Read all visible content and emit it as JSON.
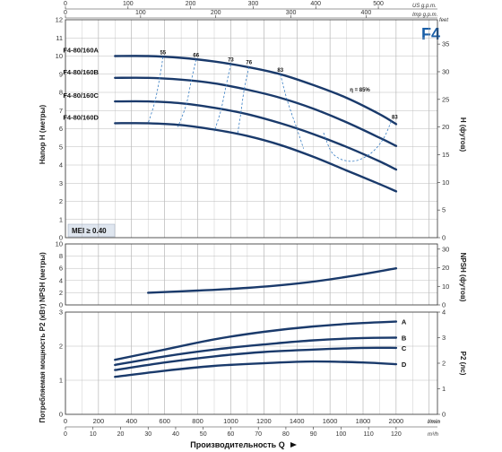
{
  "chart_data": {
    "type": "line",
    "badge": "F4",
    "mei": "MEI ≥ 0.40",
    "top_axes": [
      {
        "unit": "US g.p.m.",
        "ticks": [
          0,
          100,
          200,
          300,
          400,
          500
        ]
      },
      {
        "unit": "Imp g.p.m.",
        "ticks": [
          0,
          100,
          200,
          300,
          400
        ]
      }
    ],
    "bottom_axes": {
      "lmin": {
        "unit": "l/min",
        "ticks": [
          0,
          200,
          400,
          600,
          800,
          1000,
          1200,
          1400,
          1600,
          1800,
          2000
        ]
      },
      "m3h": {
        "unit": "m³/h",
        "ticks": [
          0,
          10,
          20,
          30,
          40,
          50,
          60,
          70,
          80,
          90,
          100,
          110,
          120
        ]
      },
      "xlabel": "Производительность Q"
    },
    "xlim": [
      0,
      2250
    ],
    "head": {
      "ylabel": "Напор H (метры)",
      "ylabel_right": "H (футов)",
      "right_unit": "feet",
      "ylim": [
        0,
        12
      ],
      "yticks": [
        0,
        1,
        2,
        3,
        4,
        5,
        6,
        7,
        8,
        9,
        10,
        11,
        12
      ],
      "yticks_right": [
        0,
        5,
        10,
        15,
        20,
        25,
        30,
        35
      ],
      "series": [
        {
          "name": "F4-80/160A",
          "x": [
            300,
            500,
            700,
            900,
            1100,
            1300,
            1500,
            1700,
            1900,
            2000
          ],
          "y": [
            10.0,
            10.0,
            9.9,
            9.7,
            9.4,
            9.0,
            8.4,
            7.7,
            6.8,
            6.25
          ]
        },
        {
          "name": "F4-80/160B",
          "x": [
            300,
            500,
            700,
            900,
            1100,
            1300,
            1500,
            1700,
            1900,
            2000
          ],
          "y": [
            8.8,
            8.8,
            8.7,
            8.5,
            8.15,
            7.7,
            7.1,
            6.35,
            5.5,
            5.05
          ]
        },
        {
          "name": "F4-80/160C",
          "x": [
            300,
            500,
            700,
            900,
            1100,
            1300,
            1500,
            1700,
            1900,
            2000
          ],
          "y": [
            7.5,
            7.5,
            7.4,
            7.15,
            6.8,
            6.3,
            5.7,
            5.0,
            4.2,
            3.75
          ]
        },
        {
          "name": "F4-80/160D",
          "x": [
            300,
            500,
            700,
            900,
            1100,
            1300,
            1500,
            1700,
            1900,
            2000
          ],
          "y": [
            6.3,
            6.3,
            6.2,
            5.95,
            5.6,
            5.1,
            4.45,
            3.7,
            2.95,
            2.55
          ]
        }
      ],
      "efficiency_lines": [
        {
          "label": "55",
          "points": [
            [
              590,
              9.95
            ],
            [
              570,
              8.8
            ],
            [
              540,
              7.45
            ],
            [
              500,
              6.3
            ]
          ]
        },
        {
          "label": "66",
          "points": [
            [
              790,
              9.8
            ],
            [
              760,
              8.6
            ],
            [
              730,
              7.3
            ],
            [
              680,
              6.1
            ]
          ]
        },
        {
          "label": "73",
          "points": [
            [
              1000,
              9.55
            ],
            [
              970,
              8.3
            ],
            [
              940,
              7.0
            ],
            [
              900,
              5.85
            ]
          ]
        },
        {
          "label": "76",
          "points": [
            [
              1110,
              9.4
            ],
            [
              1080,
              8.1
            ],
            [
              1060,
              6.8
            ],
            [
              1040,
              5.65
            ]
          ]
        },
        {
          "label": "83",
          "points": [
            [
              1300,
              9.0
            ],
            [
              1340,
              7.6
            ],
            [
              1400,
              6.0
            ],
            [
              1440,
              4.9
            ]
          ]
        },
        {
          "label": "83",
          "points": [
            [
              1970,
              6.4
            ],
            [
              1920,
              5.4
            ],
            [
              1840,
              4.6
            ],
            [
              1730,
              4.2
            ],
            [
              1620,
              4.6
            ],
            [
              1560,
              5.8
            ]
          ]
        }
      ],
      "eta_label": "η = 85%"
    },
    "npsh": {
      "ylabel": "NPSH (метры)",
      "ylabel_right": "NPSH (футов)",
      "ylim": [
        0,
        10
      ],
      "yticks": [
        0,
        2,
        4,
        6,
        8,
        10
      ],
      "yticks_right": [
        0,
        10,
        20,
        30
      ],
      "x": [
        500,
        800,
        1100,
        1400,
        1700,
        2000
      ],
      "y": [
        2.0,
        2.35,
        2.8,
        3.5,
        4.6,
        6.0
      ]
    },
    "power": {
      "ylabel": "Потребляемая мощность P2 (кВт)",
      "ylabel_right": "P2 (лс)",
      "ylim": [
        0,
        3
      ],
      "yticks": [
        0,
        1,
        2,
        3
      ],
      "yticks_right": [
        0,
        1,
        2,
        3,
        4
      ],
      "series": [
        {
          "name": "A",
          "x": [
            300,
            600,
            900,
            1200,
            1500,
            1800,
            2000
          ],
          "y": [
            1.6,
            1.9,
            2.2,
            2.42,
            2.58,
            2.68,
            2.72
          ]
        },
        {
          "name": "B",
          "x": [
            300,
            600,
            900,
            1200,
            1500,
            1800,
            2000
          ],
          "y": [
            1.45,
            1.7,
            1.9,
            2.05,
            2.17,
            2.24,
            2.25
          ]
        },
        {
          "name": "C",
          "x": [
            300,
            600,
            900,
            1200,
            1500,
            1800,
            2000
          ],
          "y": [
            1.3,
            1.52,
            1.7,
            1.83,
            1.9,
            1.95,
            1.95
          ]
        },
        {
          "name": "D",
          "x": [
            300,
            600,
            900,
            1200,
            1500,
            1800,
            2000
          ],
          "y": [
            1.1,
            1.28,
            1.42,
            1.5,
            1.55,
            1.52,
            1.47
          ]
        }
      ]
    }
  }
}
